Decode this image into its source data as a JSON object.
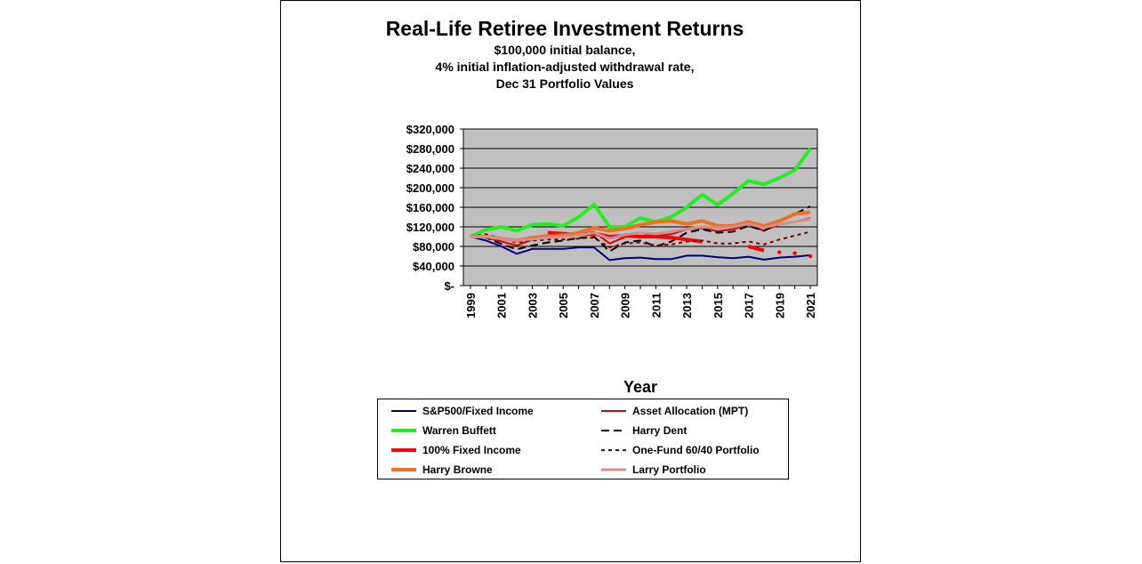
{
  "chart_data": {
    "type": "line",
    "title": "Real-Life Retiree Investment Returns",
    "subtitle": [
      "$100,000 initial balance,",
      "4% initial inflation-adjusted withdrawal rate,",
      "Dec 31 Portfolio Values"
    ],
    "xlabel": "Year",
    "ylabel": "",
    "x": [
      1999,
      2000,
      2001,
      2002,
      2003,
      2004,
      2005,
      2006,
      2007,
      2008,
      2009,
      2010,
      2011,
      2012,
      2013,
      2014,
      2015,
      2016,
      2017,
      2018,
      2019,
      2020,
      2021
    ],
    "x_tick_labels": [
      "1999",
      "2001",
      "2003",
      "2005",
      "2007",
      "2009",
      "2011",
      "2013",
      "2015",
      "2017",
      "2019",
      "2021"
    ],
    "ylim": [
      0,
      320000
    ],
    "y_tick_labels": [
      "$-",
      "$40,000",
      "$80,000",
      "$120,000",
      "$160,000",
      "$200,000",
      "$240,000",
      "$280,000",
      "$320,000"
    ],
    "y_ticks": [
      0,
      40000,
      80000,
      120000,
      160000,
      200000,
      240000,
      280000,
      320000
    ],
    "grid": true,
    "plot_background": "#c0c0c0",
    "legend_position": "bottom",
    "series": [
      {
        "name": "S&P500/Fixed Income",
        "color": "#000080",
        "width": 2,
        "dash": "",
        "values": [
          100000,
          92000,
          80000,
          65000,
          75000,
          75000,
          75000,
          78000,
          78000,
          52000,
          56000,
          57000,
          54000,
          54000,
          61000,
          61000,
          58000,
          56000,
          59000,
          53000,
          57000,
          59000,
          62000
        ]
      },
      {
        "name": "Asset Allocation (MPT)",
        "color": "#e00000",
        "width": 2,
        "dash": "",
        "values": [
          100000,
          98000,
          90000,
          82000,
          94000,
          98000,
          100000,
          104000,
          110000,
          86000,
          99000,
          108000,
          101000,
          105000,
          115000,
          117000,
          111000,
          115000,
          125000,
          112000,
          125000,
          130000,
          138000
        ]
      },
      {
        "name": "Warren Buffett",
        "color": "#22ee22",
        "width": 4,
        "dash": "",
        "values": [
          100000,
          114000,
          120000,
          112000,
          124000,
          126000,
          122000,
          140000,
          166000,
          120000,
          120000,
          138000,
          130000,
          140000,
          160000,
          186000,
          165000,
          188000,
          214000,
          207000,
          220000,
          236000,
          280000
        ]
      },
      {
        "name": "Harry Dent",
        "color": "#000000",
        "width": 2,
        "dash": "9,5",
        "values": [
          100000,
          98000,
          85000,
          74000,
          82000,
          88000,
          92000,
          97000,
          100000,
          70000,
          88000,
          92000,
          80000,
          90000,
          108000,
          115000,
          108000,
          110000,
          122000,
          112000,
          130000,
          146000,
          162000
        ]
      },
      {
        "name": "100% Fixed Income",
        "color": "#ff0000",
        "width": 4,
        "dash": "",
        "values": [
          100000,
          100000,
          null,
          null,
          null,
          108000,
          106000,
          104000,
          106000,
          100000,
          102000,
          100000,
          100000,
          98000,
          94000,
          90000,
          null,
          null,
          80000,
          72000,
          null,
          null,
          null
        ]
      },
      {
        "name": "One-Fund 60/40 Portfolio",
        "color": "#800000",
        "width": 2,
        "dash": "4,4",
        "values": [
          100000,
          105000,
          96000,
          88000,
          92000,
          94000,
          94000,
          96000,
          98000,
          78000,
          86000,
          88000,
          82000,
          84000,
          90000,
          92000,
          86000,
          86000,
          90000,
          84000,
          94000,
          102000,
          110000
        ]
      },
      {
        "name": "Harry Browne",
        "color": "#f07020",
        "width": 4,
        "dash": "",
        "values": [
          100000,
          100000,
          96000,
          92000,
          98000,
          101000,
          103000,
          108000,
          118000,
          112000,
          116000,
          124000,
          130000,
          132000,
          126000,
          132000,
          122000,
          122000,
          130000,
          122000,
          132000,
          146000,
          150000
        ]
      },
      {
        "name": "Larry Portfolio",
        "color": "#d09090",
        "width": 3,
        "dash": "",
        "values": [
          100000,
          100000,
          96000,
          92000,
          95000,
          98000,
          100000,
          103000,
          108000,
          96000,
          104000,
          108000,
          106000,
          110000,
          116000,
          120000,
          118000,
          120000,
          126000,
          118000,
          126000,
          130000,
          136000
        ]
      }
    ],
    "fixed_income_dots": {
      "x": [
        2019,
        2020,
        2021
      ],
      "values": [
        68000,
        66000,
        60000
      ]
    }
  }
}
